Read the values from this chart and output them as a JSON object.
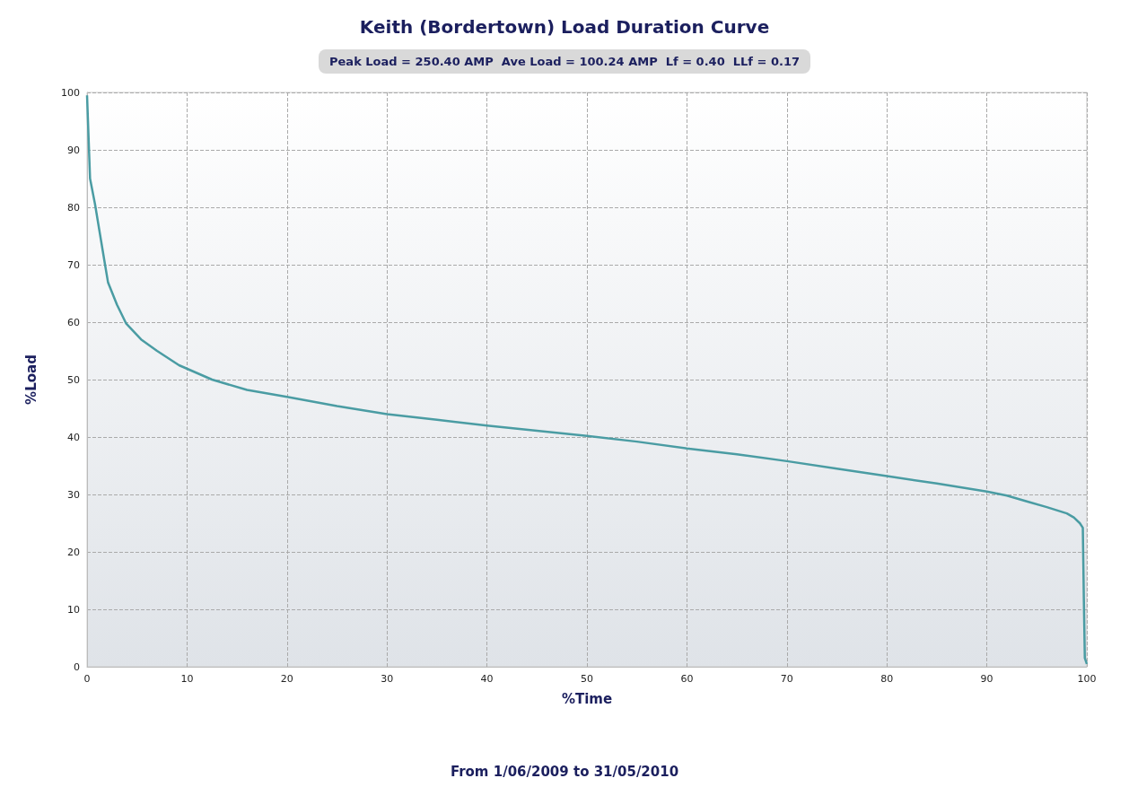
{
  "chart_data": {
    "type": "line",
    "title": "Keith (Bordertown) Load Duration Curve",
    "subtitle": "Peak Load = 250.40 AMP  Ave Load = 100.24 AMP  Lf = 0.40  LLf = 0.17",
    "xlabel": "%Time",
    "ylabel": "%Load",
    "annotations": [
      "From 1/06/2009 to 31/05/2010"
    ],
    "series": [
      {
        "color": "#4a9ca3",
        "x": [
          0,
          0.3,
          0.8,
          1.8,
          2.1,
          3,
          3.9,
          5.4,
          7,
          9.2,
          12.5,
          16,
          20,
          25,
          30,
          35,
          40,
          45,
          50,
          55,
          60,
          65,
          70,
          75,
          80,
          85,
          90,
          92,
          94,
          96,
          98,
          98.7,
          99.3,
          99.6,
          99.7,
          99.8,
          100
        ],
        "values": [
          99.5,
          85,
          80.5,
          70,
          66.9,
          63,
          59.8,
          57,
          55,
          52.5,
          50,
          48.2,
          47,
          45.4,
          44,
          43,
          42,
          41.1,
          40.2,
          39.2,
          38,
          37,
          35.8,
          34.5,
          33.2,
          31.9,
          30.5,
          29.8,
          28.8,
          27.8,
          26.7,
          26,
          25,
          24.2,
          12,
          1.5,
          0.5
        ]
      }
    ],
    "xlim": [
      0,
      100
    ],
    "xticks": [
      0,
      10,
      20,
      30,
      40,
      50,
      60,
      70,
      80,
      90,
      100
    ],
    "ylim": [
      0,
      100
    ],
    "yticks": [
      0,
      10,
      20,
      30,
      40,
      50,
      60,
      70,
      80,
      90,
      100
    ],
    "grid": true,
    "marker": "none",
    "line_style": "solid"
  }
}
